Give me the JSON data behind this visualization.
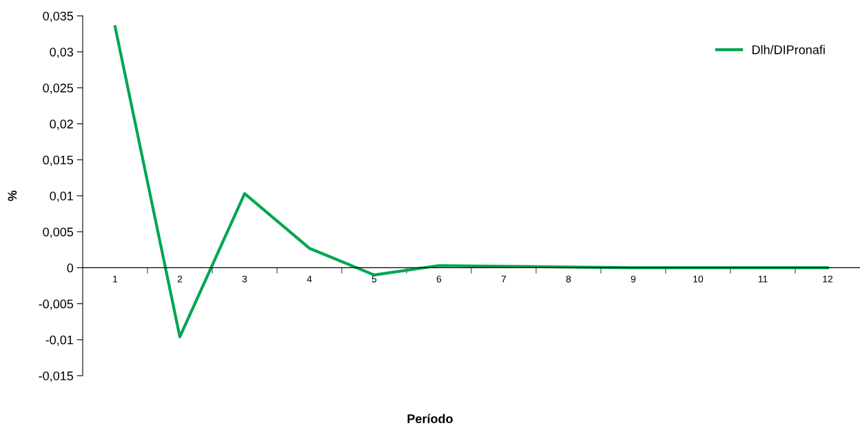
{
  "chart_data": {
    "type": "line",
    "xlabel": "Período",
    "ylabel": "%",
    "categories": [
      "1",
      "2",
      "3",
      "4",
      "5",
      "6",
      "7",
      "8",
      "9",
      "10",
      "11",
      "12"
    ],
    "series": [
      {
        "name": "Dlh/DIPronafi",
        "color": "#00a651",
        "values": [
          0.0335,
          -0.0096,
          0.0103,
          0.0027,
          -0.001,
          0.0003,
          0.0002,
          0.0001,
          0,
          0,
          0,
          0
        ]
      }
    ],
    "ylim": [
      -0.015,
      0.035
    ],
    "yticks": [
      {
        "value": -0.015,
        "label": "-0,015"
      },
      {
        "value": -0.01,
        "label": "-0,01"
      },
      {
        "value": -0.005,
        "label": "-0,005"
      },
      {
        "value": 0,
        "label": "0"
      },
      {
        "value": 0.005,
        "label": "0,005"
      },
      {
        "value": 0.01,
        "label": "0,01"
      },
      {
        "value": 0.015,
        "label": "0,015"
      },
      {
        "value": 0.02,
        "label": "0,02"
      },
      {
        "value": 0.025,
        "label": "0,025"
      },
      {
        "value": 0.03,
        "label": "0,03"
      },
      {
        "value": 0.035,
        "label": "0,035"
      }
    ],
    "grid": false,
    "legend": "top right",
    "marker": "none",
    "line_style": "solid"
  }
}
